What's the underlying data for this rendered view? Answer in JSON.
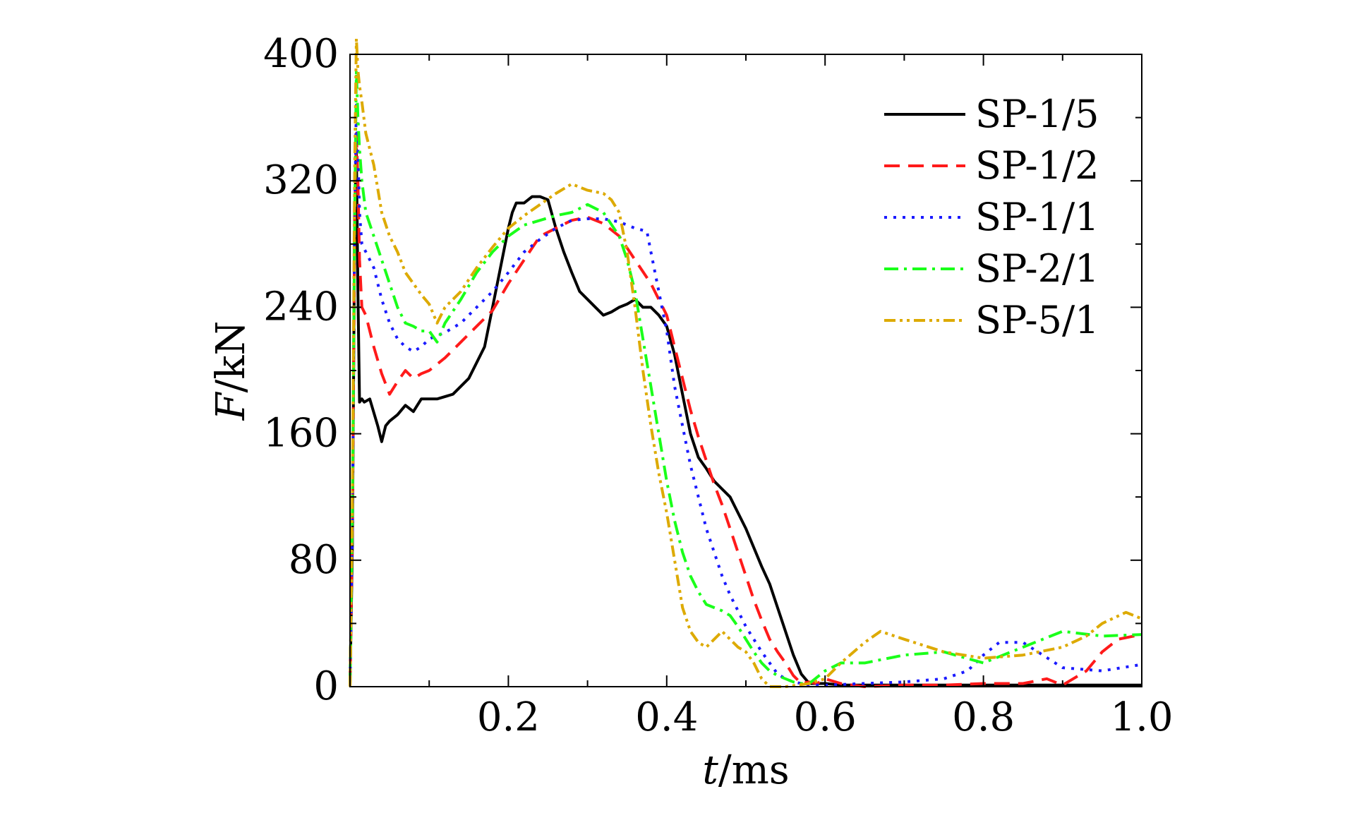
{
  "chart_data": {
    "type": "line",
    "xlabel": {
      "var": "t",
      "unit": "/ms"
    },
    "ylabel": {
      "var": "F",
      "unit": "/kN"
    },
    "xlim": [
      0,
      1.0
    ],
    "ylim": [
      0,
      400
    ],
    "xticks": [
      0.2,
      0.4,
      0.6,
      0.8,
      1.0
    ],
    "xtick_labels": [
      "0.2",
      "0.4",
      "0.6",
      "0.8",
      "1.0"
    ],
    "yticks": [
      0,
      80,
      160,
      240,
      320,
      400
    ],
    "ytick_labels": [
      "0",
      "80",
      "160",
      "240",
      "320",
      "400"
    ],
    "grid": false,
    "legend_position": "top-right",
    "series": [
      {
        "name": "SP-1/5",
        "color": "#000000",
        "dash": "solid",
        "x": [
          0,
          0.003,
          0.006,
          0.008,
          0.01,
          0.012,
          0.015,
          0.018,
          0.025,
          0.035,
          0.04,
          0.045,
          0.05,
          0.06,
          0.07,
          0.08,
          0.09,
          0.1,
          0.11,
          0.13,
          0.15,
          0.17,
          0.18,
          0.19,
          0.2,
          0.205,
          0.21,
          0.22,
          0.23,
          0.24,
          0.25,
          0.26,
          0.27,
          0.28,
          0.29,
          0.3,
          0.31,
          0.32,
          0.33,
          0.34,
          0.35,
          0.36,
          0.37,
          0.38,
          0.39,
          0.4,
          0.41,
          0.42,
          0.43,
          0.44,
          0.45,
          0.46,
          0.47,
          0.48,
          0.49,
          0.5,
          0.51,
          0.52,
          0.53,
          0.54,
          0.55,
          0.56,
          0.57,
          0.58,
          0.59,
          0.6,
          0.62,
          0.65,
          0.7,
          0.8,
          0.9,
          1.0
        ],
        "values": [
          0,
          90,
          300,
          340,
          250,
          180,
          182,
          180,
          182,
          165,
          155,
          165,
          168,
          172,
          178,
          174,
          182,
          182,
          182,
          185,
          195,
          215,
          240,
          265,
          290,
          300,
          306,
          306,
          310,
          310,
          308,
          290,
          275,
          262,
          250,
          245,
          240,
          235,
          237,
          240,
          242,
          245,
          240,
          240,
          235,
          228,
          210,
          185,
          160,
          145,
          138,
          130,
          125,
          120,
          110,
          100,
          88,
          76,
          65,
          50,
          35,
          20,
          8,
          2,
          2,
          2,
          1,
          1,
          1,
          1,
          1,
          1
        ]
      },
      {
        "name": "SP-1/2",
        "color": "#ff1a1a",
        "dash": "22 12",
        "x": [
          0,
          0.003,
          0.006,
          0.008,
          0.01,
          0.012,
          0.015,
          0.02,
          0.03,
          0.04,
          0.05,
          0.06,
          0.07,
          0.08,
          0.09,
          0.1,
          0.12,
          0.14,
          0.16,
          0.18,
          0.2,
          0.22,
          0.24,
          0.26,
          0.28,
          0.3,
          0.32,
          0.34,
          0.36,
          0.38,
          0.4,
          0.41,
          0.42,
          0.43,
          0.44,
          0.45,
          0.46,
          0.47,
          0.48,
          0.49,
          0.5,
          0.51,
          0.52,
          0.53,
          0.54,
          0.55,
          0.56,
          0.57,
          0.58,
          0.59,
          0.6,
          0.62,
          0.65,
          0.7,
          0.75,
          0.8,
          0.85,
          0.88,
          0.9,
          0.93,
          0.95,
          0.97,
          1.0
        ],
        "values": [
          0,
          100,
          300,
          350,
          320,
          270,
          240,
          235,
          215,
          198,
          185,
          193,
          200,
          195,
          198,
          200,
          208,
          218,
          228,
          238,
          255,
          270,
          285,
          290,
          295,
          297,
          293,
          285,
          270,
          255,
          235,
          215,
          195,
          175,
          158,
          143,
          128,
          115,
          100,
          85,
          70,
          55,
          42,
          30,
          22,
          15,
          7,
          2,
          3,
          2,
          5,
          2,
          0,
          1,
          1,
          2,
          2,
          5,
          1,
          10,
          22,
          30,
          33
        ]
      },
      {
        "name": "SP-1/1",
        "color": "#1a1aff",
        "dash": "4 9",
        "x": [
          0,
          0.003,
          0.006,
          0.008,
          0.01,
          0.012,
          0.015,
          0.02,
          0.03,
          0.04,
          0.05,
          0.06,
          0.07,
          0.08,
          0.09,
          0.1,
          0.12,
          0.14,
          0.16,
          0.18,
          0.2,
          0.22,
          0.24,
          0.26,
          0.28,
          0.3,
          0.32,
          0.34,
          0.36,
          0.375,
          0.38,
          0.39,
          0.4,
          0.41,
          0.42,
          0.43,
          0.44,
          0.45,
          0.46,
          0.47,
          0.48,
          0.49,
          0.5,
          0.51,
          0.52,
          0.53,
          0.54,
          0.55,
          0.56,
          0.57,
          0.58,
          0.59,
          0.6,
          0.65,
          0.7,
          0.75,
          0.78,
          0.8,
          0.82,
          0.85,
          0.9,
          0.95,
          1.0
        ],
        "values": [
          0,
          100,
          300,
          370,
          340,
          300,
          280,
          275,
          265,
          245,
          230,
          220,
          215,
          212,
          215,
          220,
          224,
          230,
          240,
          250,
          262,
          275,
          283,
          290,
          295,
          296,
          296,
          294,
          290,
          288,
          275,
          250,
          225,
          190,
          165,
          140,
          120,
          100,
          85,
          70,
          58,
          48,
          38,
          30,
          22,
          15,
          8,
          5,
          3,
          2,
          1,
          1,
          1,
          2,
          3,
          5,
          10,
          20,
          28,
          28,
          12,
          10,
          14
        ]
      },
      {
        "name": "SP-2/1",
        "color": "#1aff1a",
        "dash": "20 8 4 8",
        "x": [
          0,
          0.003,
          0.006,
          0.008,
          0.01,
          0.012,
          0.015,
          0.02,
          0.03,
          0.04,
          0.05,
          0.06,
          0.07,
          0.08,
          0.09,
          0.1,
          0.11,
          0.12,
          0.14,
          0.16,
          0.18,
          0.2,
          0.22,
          0.24,
          0.26,
          0.28,
          0.3,
          0.32,
          0.34,
          0.35,
          0.36,
          0.37,
          0.38,
          0.39,
          0.4,
          0.41,
          0.42,
          0.43,
          0.44,
          0.45,
          0.46,
          0.47,
          0.48,
          0.49,
          0.5,
          0.51,
          0.52,
          0.53,
          0.54,
          0.55,
          0.56,
          0.57,
          0.58,
          0.6,
          0.62,
          0.65,
          0.7,
          0.75,
          0.8,
          0.85,
          0.9,
          0.95,
          1.0
        ],
        "values": [
          0,
          110,
          300,
          390,
          360,
          340,
          320,
          300,
          285,
          270,
          255,
          240,
          230,
          228,
          225,
          225,
          218,
          230,
          245,
          262,
          275,
          285,
          292,
          295,
          298,
          300,
          305,
          300,
          285,
          270,
          250,
          220,
          190,
          160,
          130,
          105,
          85,
          70,
          60,
          52,
          50,
          48,
          45,
          38,
          30,
          22,
          15,
          10,
          7,
          5,
          3,
          2,
          2,
          10,
          15,
          15,
          20,
          22,
          15,
          25,
          35,
          32,
          33
        ]
      },
      {
        "name": "SP-5/1",
        "color": "#ddaa00",
        "dash": "16 6 4 6 4 6",
        "x": [
          0,
          0.003,
          0.006,
          0.008,
          0.01,
          0.012,
          0.015,
          0.02,
          0.03,
          0.04,
          0.05,
          0.06,
          0.07,
          0.08,
          0.09,
          0.1,
          0.11,
          0.12,
          0.13,
          0.14,
          0.16,
          0.18,
          0.2,
          0.22,
          0.24,
          0.26,
          0.28,
          0.3,
          0.32,
          0.33,
          0.34,
          0.35,
          0.36,
          0.37,
          0.38,
          0.39,
          0.4,
          0.41,
          0.42,
          0.43,
          0.44,
          0.45,
          0.46,
          0.47,
          0.48,
          0.49,
          0.5,
          0.51,
          0.52,
          0.53,
          0.55,
          0.58,
          0.6,
          0.62,
          0.65,
          0.67,
          0.7,
          0.75,
          0.8,
          0.85,
          0.9,
          0.93,
          0.95,
          0.98,
          1.0
        ],
        "values": [
          0,
          120,
          330,
          410,
          390,
          380,
          370,
          350,
          330,
          300,
          285,
          275,
          262,
          255,
          248,
          242,
          230,
          240,
          245,
          250,
          265,
          278,
          290,
          298,
          305,
          312,
          318,
          314,
          312,
          308,
          300,
          275,
          240,
          200,
          165,
          135,
          110,
          80,
          50,
          35,
          28,
          25,
          30,
          35,
          30,
          25,
          22,
          15,
          5,
          0,
          0,
          2,
          5,
          15,
          28,
          35,
          30,
          22,
          18,
          20,
          25,
          32,
          40,
          47,
          43
        ]
      }
    ]
  }
}
